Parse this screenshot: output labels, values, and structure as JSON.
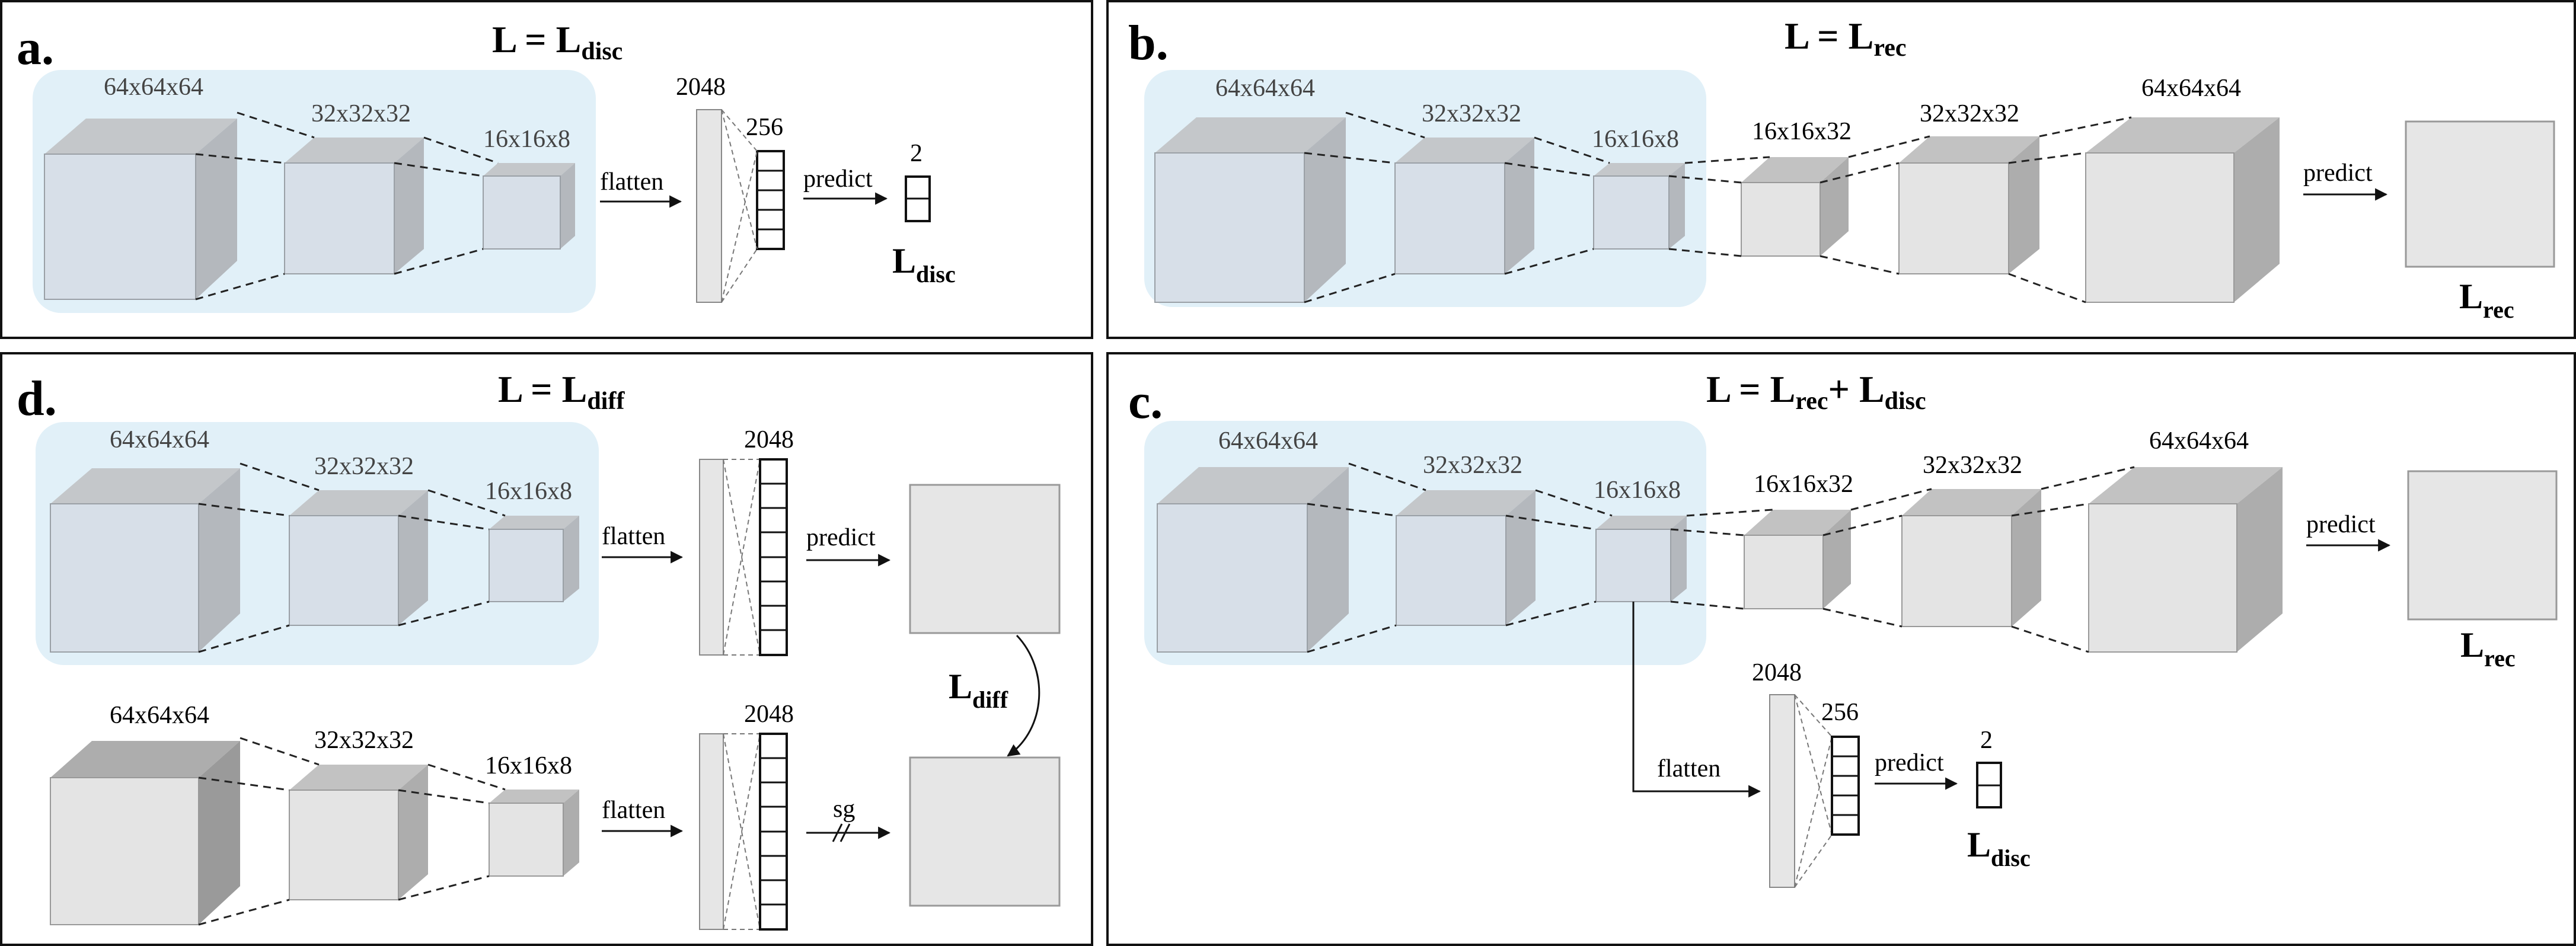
{
  "panels": [
    {
      "id": "a",
      "letter": "a.",
      "loss": {
        "main": "L = L",
        "sub": "disc"
      },
      "encoder_dims": [
        "64x64x64",
        "32x32x32",
        "16x16x8"
      ],
      "flatten_label": "flatten",
      "flat_dim": "2048",
      "dense_dim": "256",
      "predict_label": "predict",
      "out_dim": "2",
      "out_loss": {
        "main": "L",
        "sub": "disc"
      }
    },
    {
      "id": "b",
      "letter": "b.",
      "loss": {
        "main": "L = L",
        "sub": "rec"
      },
      "encoder_dims": [
        "64x64x64",
        "32x32x32",
        "16x16x8"
      ],
      "decoder_dims": [
        "16x16x32",
        "32x32x32",
        "64x64x64"
      ],
      "predict_label": "predict",
      "out_loss": {
        "main": "L",
        "sub": "rec"
      }
    },
    {
      "id": "d",
      "letter": "d.",
      "loss": {
        "main": "L = L",
        "sub": "diff"
      },
      "encoder_dims": [
        "64x64x64",
        "32x32x32",
        "16x16x8"
      ],
      "encoder2_dims": [
        "64x64x64",
        "32x32x32",
        "16x16x8"
      ],
      "flatten_label": "flatten",
      "flat_dim": "2048",
      "flat_dim2": "2048",
      "predict_label": "predict",
      "sg_label": "sg",
      "diff_loss": {
        "main": "L",
        "sub": "diff"
      }
    },
    {
      "id": "c",
      "letter": "c.",
      "loss": {
        "main": "L = L",
        "sub1": "rec",
        "plus": "+  L",
        "sub2": "disc"
      },
      "encoder_dims": [
        "64x64x64",
        "32x32x32",
        "16x16x8"
      ],
      "decoder_dims": [
        "16x16x32",
        "32x32x32",
        "64x64x64"
      ],
      "predict_label": "predict",
      "out_loss": {
        "main": "L",
        "sub": "rec"
      },
      "flatten_label": "flatten",
      "flat_dim": "2048",
      "dense_dim": "256",
      "predict_label2": "predict",
      "out_dim": "2",
      "out_loss2": {
        "main": "L",
        "sub": "disc"
      }
    }
  ],
  "colors": {
    "encoder_bg": "#e1f0f8",
    "enc_front": "#d7dfe8",
    "enc_side": "#b4b8bd",
    "enc_top": "#c4c7ca",
    "dec_front": "#e4e4e4",
    "dec_side": "#adadad",
    "dec_top": "#c2c2c2",
    "output_box": "#e6e6e6"
  }
}
